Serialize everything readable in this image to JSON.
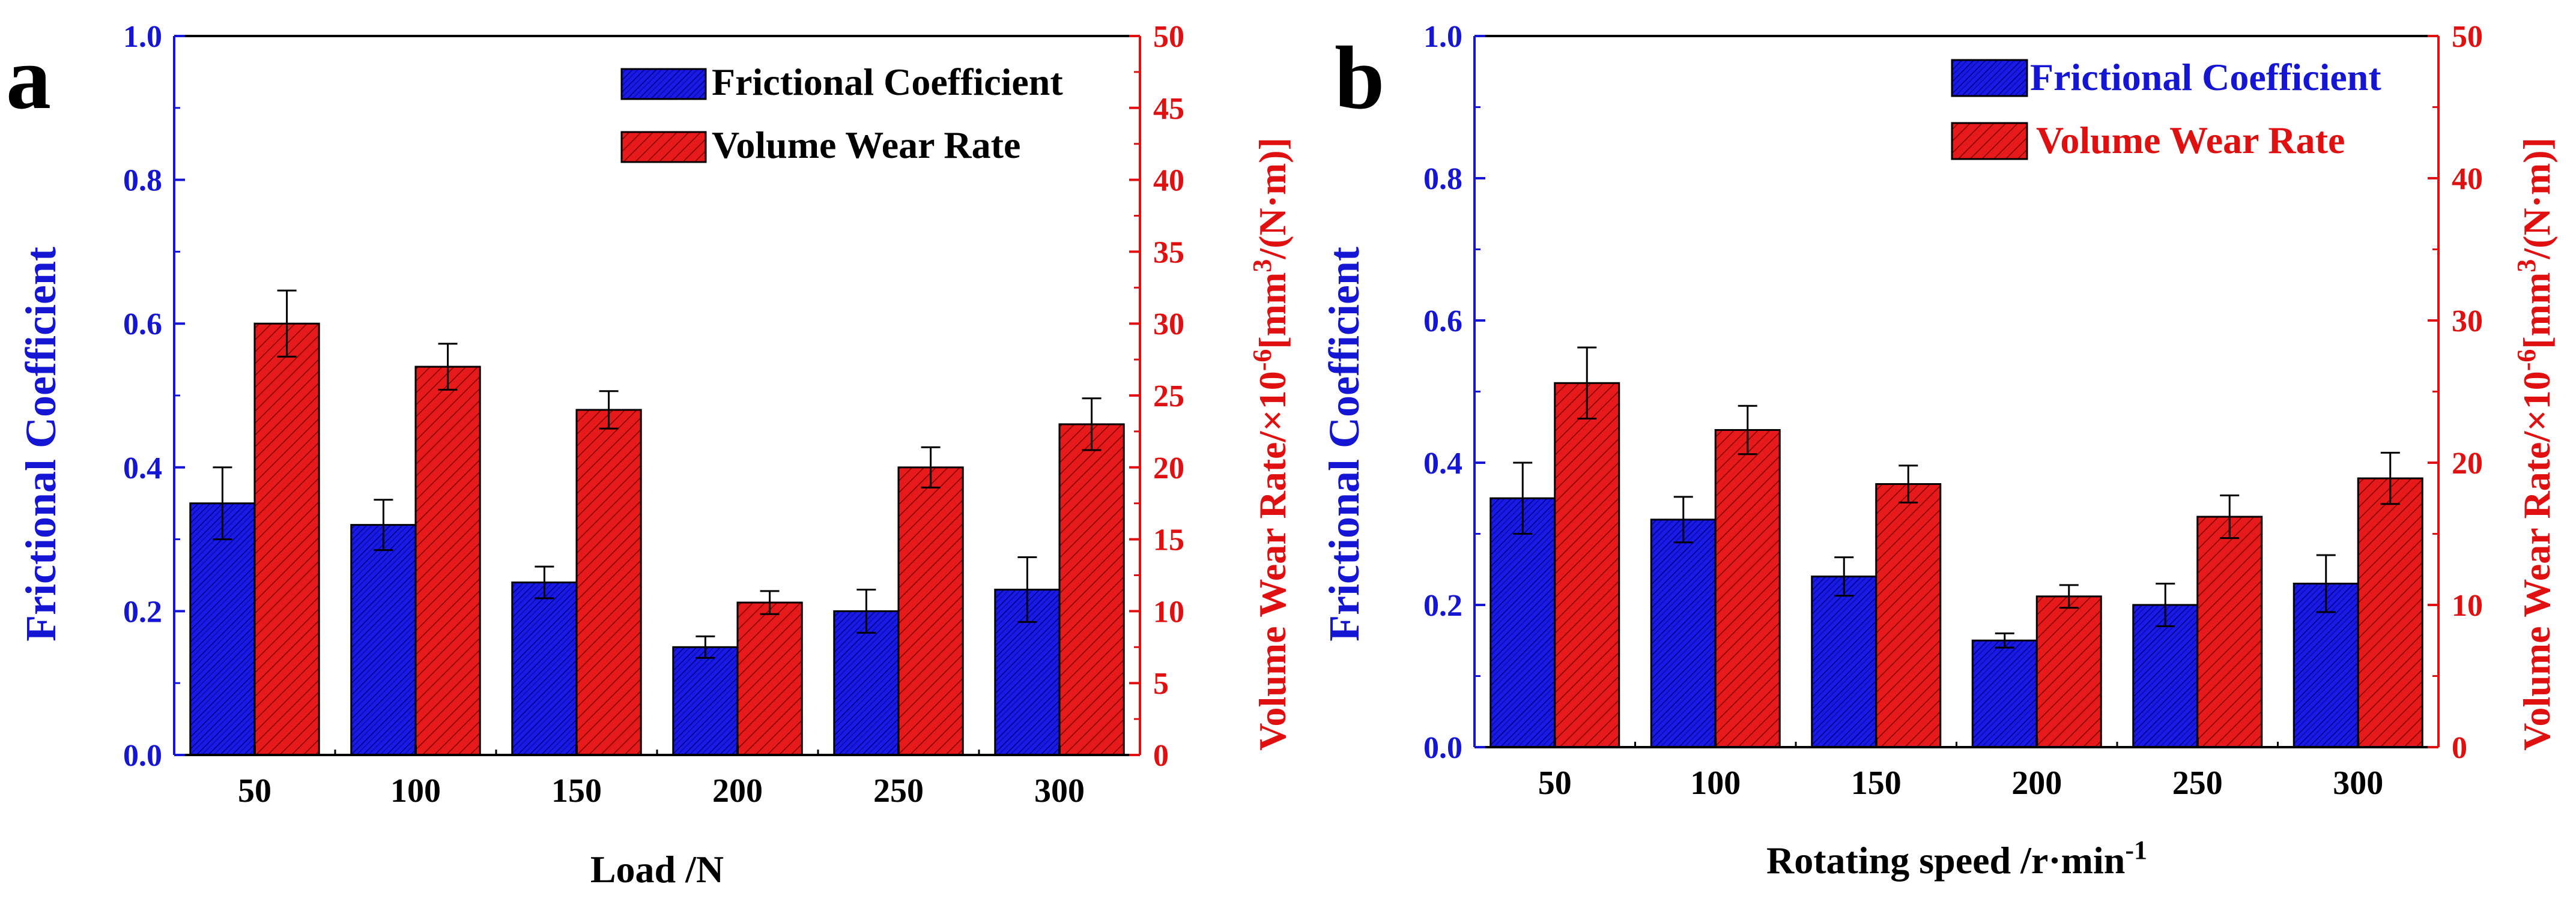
{
  "colors": {
    "friction": "#1a1ae6",
    "friction_hatch": "#000080",
    "wear": "#e61a1a",
    "wear_hatch": "#800000",
    "left_axis": "#1515d4",
    "right_axis": "#e01010",
    "frame": "#000000"
  },
  "chart_data": [
    {
      "panel_label": "a",
      "type": "bar",
      "title": "",
      "xlabel": "Load /N",
      "xlabel_sup": "",
      "categories": [
        "50",
        "100",
        "150",
        "200",
        "250",
        "300"
      ],
      "ylabel": "Frictional Coefficient",
      "ylim": [
        0,
        1.0
      ],
      "y_ticks": [
        "0.0",
        "0.2",
        "0.4",
        "0.6",
        "0.8",
        "1.0"
      ],
      "y2label": {
        "pre": "Volume Wear Rate/×10",
        "sup1": "-6",
        "mid": "[mm",
        "sup2": "3",
        "post": "/(N·m)]"
      },
      "y2lim": [
        0,
        50
      ],
      "y2_ticks": [
        "0",
        "5",
        "10",
        "15",
        "20",
        "25",
        "30",
        "35",
        "40",
        "45",
        "50"
      ],
      "legend_position": "top-right",
      "series": [
        {
          "name": "Frictional Coefficient",
          "axis": "left",
          "values": [
            0.35,
            0.32,
            0.24,
            0.15,
            0.2,
            0.23
          ],
          "errors": [
            0.05,
            0.035,
            0.022,
            0.015,
            0.03,
            0.045
          ]
        },
        {
          "name": "Volume Wear Rate",
          "axis": "right",
          "values": [
            30.0,
            27.0,
            24.0,
            10.6,
            20.0,
            23.0
          ],
          "errors": [
            2.3,
            1.6,
            1.3,
            0.8,
            1.4,
            1.8
          ]
        }
      ]
    },
    {
      "panel_label": "b",
      "type": "bar",
      "title": "",
      "xlabel": "Rotating speed /r·min",
      "xlabel_sup": "-1",
      "categories": [
        "50",
        "100",
        "150",
        "200",
        "250",
        "300"
      ],
      "ylabel": "Frictional Coefficient",
      "ylim": [
        0,
        1.0
      ],
      "y_ticks": [
        "0.0",
        "0.2",
        "0.4",
        "0.6",
        "0.8",
        "1.0"
      ],
      "y2label": {
        "pre": "Volume Wear Rate/×10",
        "sup1": "-6",
        "mid": "[mm",
        "sup2": "3",
        "post": "/(N·m)]"
      },
      "y2lim": [
        0,
        50
      ],
      "y2_ticks": [
        "0",
        "10",
        "20",
        "30",
        "40",
        "50"
      ],
      "legend_position": "top-right",
      "series": [
        {
          "name": "Frictional Coefficient",
          "axis": "left",
          "values": [
            0.35,
            0.32,
            0.24,
            0.15,
            0.2,
            0.23
          ],
          "errors": [
            0.05,
            0.032,
            0.027,
            0.01,
            0.03,
            0.04
          ]
        },
        {
          "name": "Volume Wear Rate",
          "axis": "right",
          "values": [
            25.6,
            22.3,
            18.5,
            10.6,
            16.2,
            18.9
          ],
          "errors": [
            2.5,
            1.7,
            1.3,
            0.8,
            1.5,
            1.8
          ]
        }
      ]
    }
  ]
}
